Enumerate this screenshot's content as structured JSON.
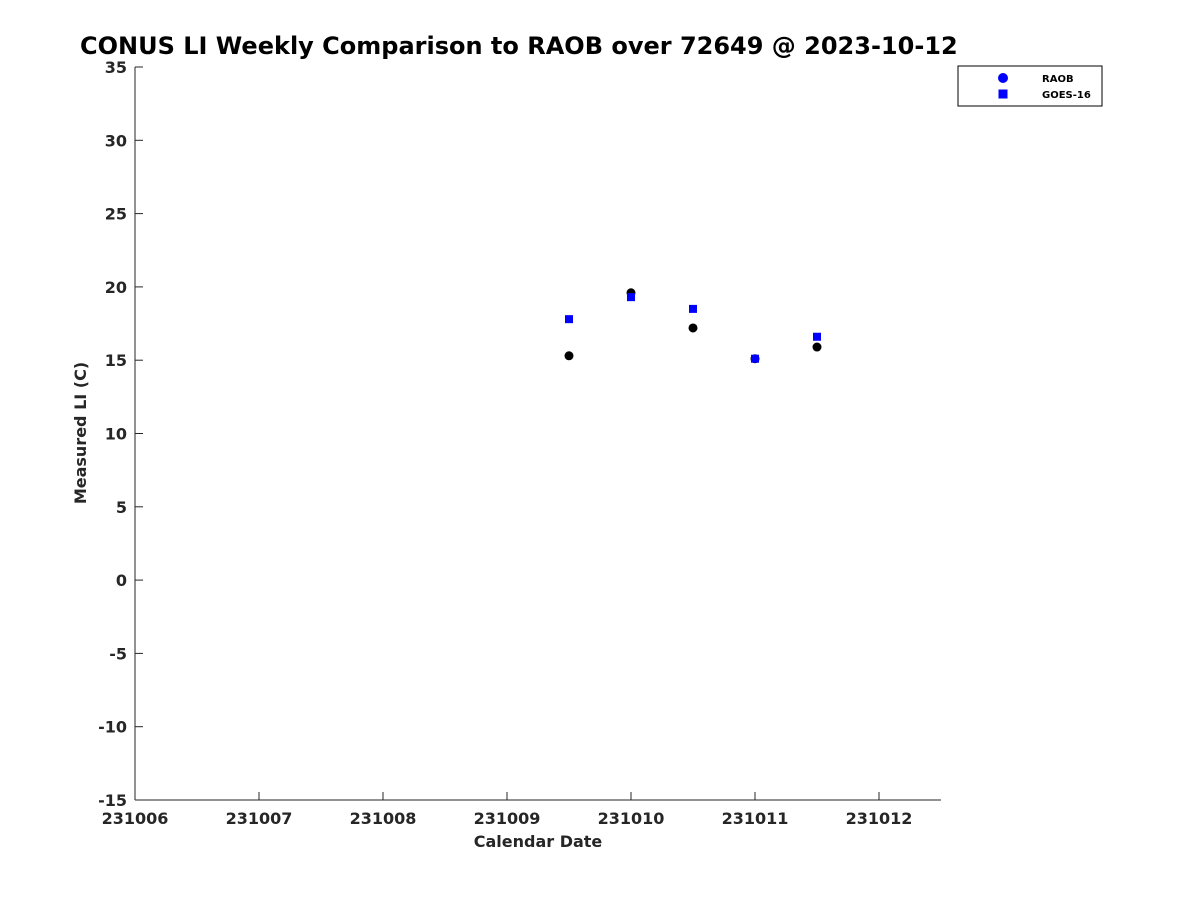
{
  "chart_data": {
    "type": "scatter",
    "title": "CONUS LI Weekly Comparison to RAOB over 72649 @ 2023-10-12",
    "xlabel": "Calendar Date",
    "ylabel": "Measured LI (C)",
    "xlim": [
      231006,
      231012.5
    ],
    "ylim": [
      -15,
      35
    ],
    "xticks": [
      231006,
      231007,
      231008,
      231009,
      231010,
      231011,
      231012
    ],
    "xtick_labels": [
      "231006",
      "231007",
      "231008",
      "231009",
      "231010",
      "231011",
      "231012"
    ],
    "yticks": [
      -15,
      -10,
      -5,
      0,
      5,
      10,
      15,
      20,
      25,
      30,
      35
    ],
    "ytick_labels": [
      "-15",
      "-10",
      "-5",
      "0",
      "5",
      "10",
      "15",
      "20",
      "25",
      "30",
      "35"
    ],
    "grid": false,
    "legend_position": "top-right",
    "series": [
      {
        "name": "RAOB",
        "marker": "circle",
        "legend_color": "#0000ff",
        "point_color": "#000000",
        "x": [
          231009.5,
          231010,
          231010.5,
          231011,
          231011.5
        ],
        "y": [
          15.3,
          19.6,
          17.2,
          15.1,
          15.9
        ]
      },
      {
        "name": "GOES-16",
        "marker": "square",
        "legend_color": "#0000ff",
        "point_color": "#0000ff",
        "x": [
          231009.5,
          231010,
          231010.5,
          231011,
          231011.5
        ],
        "y": [
          17.8,
          19.3,
          18.5,
          15.1,
          16.6
        ]
      }
    ]
  }
}
